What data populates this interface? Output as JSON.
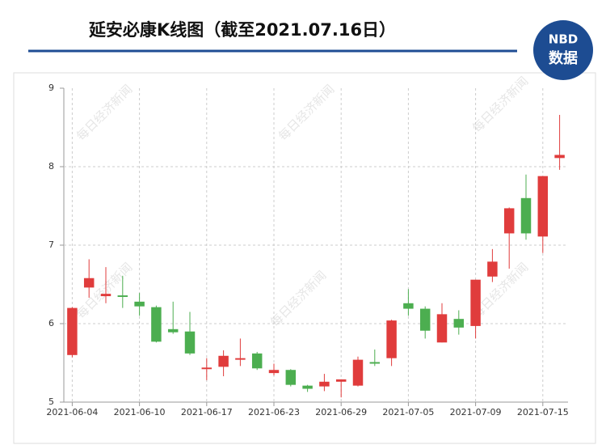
{
  "header": {
    "title": "延安必康K线图（截至2021.07.16日）",
    "logo_top": "NBD",
    "logo_bottom": "数据"
  },
  "watermark": "每日经济新闻",
  "chart_data": {
    "type": "candlestick",
    "categories": [
      "2021-06-04",
      null,
      null,
      null,
      "2021-06-10",
      null,
      null,
      null,
      "2021-06-17",
      null,
      null,
      null,
      "2021-06-23",
      null,
      null,
      null,
      "2021-06-29",
      null,
      null,
      null,
      "2021-07-05",
      null,
      null,
      null,
      "2021-07-09",
      null,
      null,
      null,
      "2021-07-15",
      null
    ],
    "open": [
      5.6,
      6.46,
      6.35,
      6.36,
      6.28,
      6.21,
      5.93,
      5.9,
      5.42,
      5.45,
      5.54,
      5.62,
      5.37,
      5.41,
      5.21,
      5.2,
      5.26,
      5.21,
      5.51,
      5.56,
      6.26,
      6.19,
      5.76,
      6.06,
      5.97,
      6.6,
      7.15,
      7.6,
      7.11,
      8.11
    ],
    "high": [
      6.21,
      6.82,
      6.72,
      6.61,
      6.39,
      6.23,
      6.28,
      6.15,
      5.56,
      5.66,
      5.81,
      5.64,
      5.49,
      5.42,
      5.22,
      5.36,
      5.29,
      5.58,
      5.67,
      6.05,
      6.44,
      6.22,
      6.26,
      6.17,
      6.56,
      6.95,
      7.48,
      7.9,
      7.88,
      8.66
    ],
    "low": [
      5.57,
      6.33,
      6.26,
      6.2,
      6.1,
      5.76,
      5.87,
      5.6,
      5.28,
      5.33,
      5.46,
      5.41,
      5.34,
      5.2,
      5.13,
      5.14,
      5.06,
      5.2,
      5.46,
      5.46,
      6.1,
      5.81,
      5.76,
      5.86,
      5.81,
      6.53,
      6.7,
      7.07,
      6.9,
      7.96
    ],
    "close": [
      6.2,
      6.58,
      6.38,
      6.34,
      6.22,
      5.77,
      5.89,
      5.62,
      5.44,
      5.59,
      5.56,
      5.43,
      5.41,
      5.22,
      5.17,
      5.26,
      5.29,
      5.54,
      5.49,
      6.04,
      6.19,
      5.91,
      6.12,
      5.95,
      6.56,
      6.79,
      7.47,
      7.15,
      7.88,
      8.15
    ],
    "up_color": "#e03c3c",
    "down_color": "#4cae50",
    "ylim": [
      5,
      9
    ],
    "yticks": [
      5,
      6,
      7,
      8,
      9
    ],
    "grid": true
  }
}
